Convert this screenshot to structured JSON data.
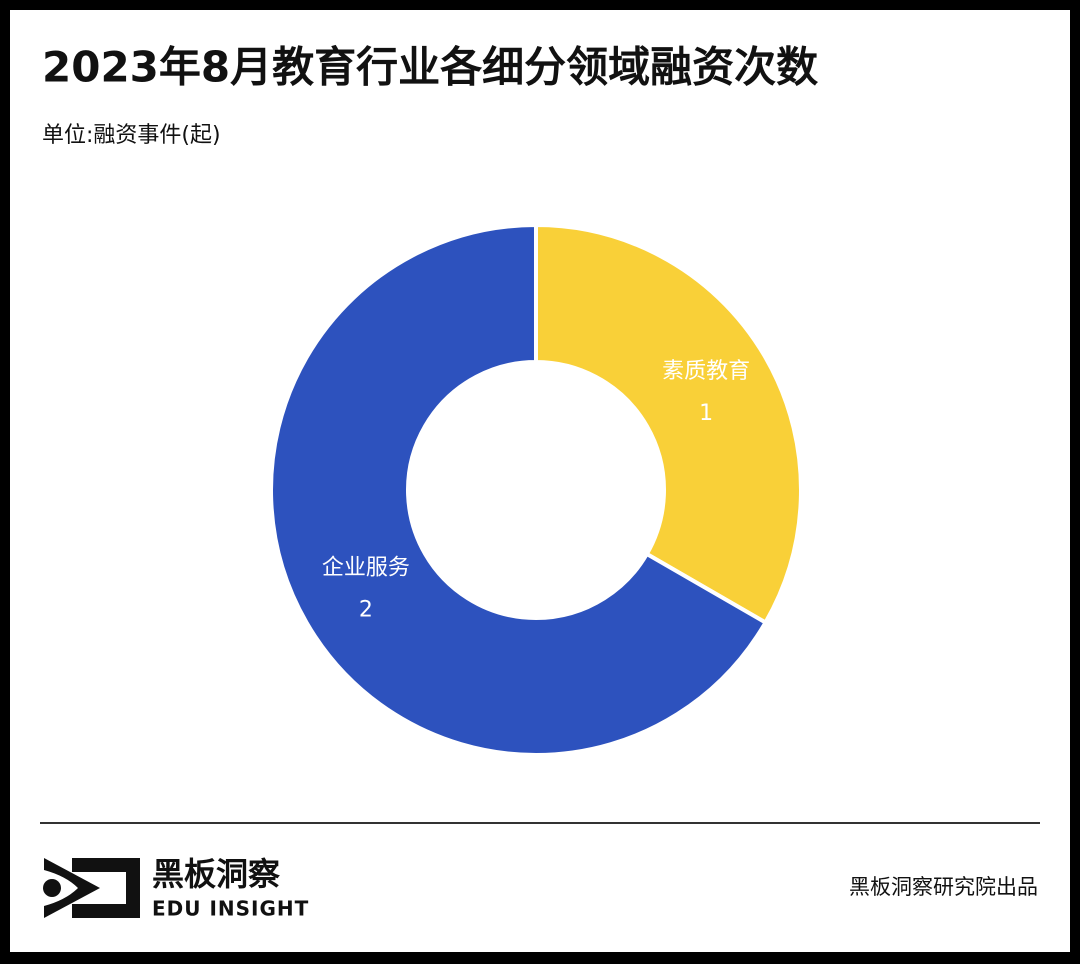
{
  "chart_data": {
    "type": "donut",
    "title": "2023年8月教育行业各细分领域融资次数",
    "subtitle": "单位:融资事件(起)",
    "categories": [
      "素质教育",
      "企业服务"
    ],
    "values": [
      1,
      2
    ],
    "colors": [
      "#f9d038",
      "#2d52be"
    ]
  },
  "footer": {
    "logo_name": "黑板洞察",
    "logo_en": "EDU INSIGHT",
    "credit": "黑板洞察研究院出品"
  }
}
